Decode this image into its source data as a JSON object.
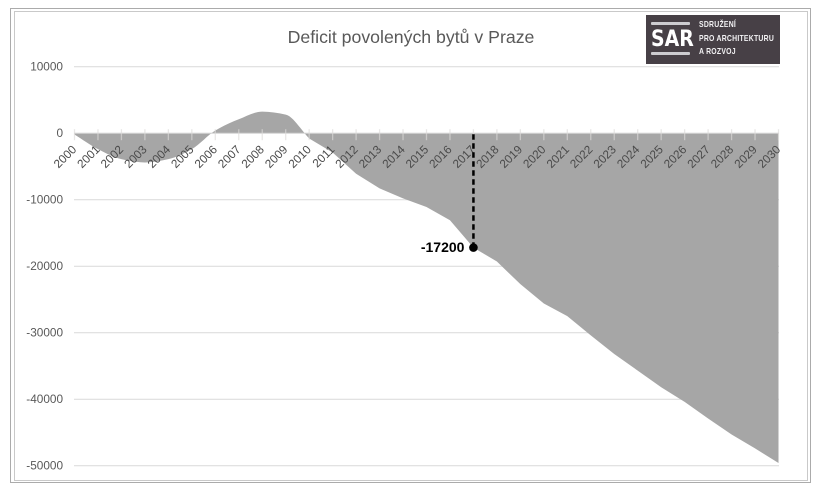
{
  "page": {
    "background": "#ffffff"
  },
  "chart_data": {
    "type": "area",
    "title": "Deficit povolených bytů v Praze",
    "categories": [
      "2000",
      "2001",
      "2002",
      "2003",
      "2004",
      "2005",
      "2006",
      "2007",
      "2008",
      "2009",
      "2010",
      "2011",
      "2012",
      "2013",
      "2014",
      "2015",
      "2016",
      "2017",
      "2018",
      "2019",
      "2020",
      "2021",
      "2022",
      "2023",
      "2024",
      "2025",
      "2026",
      "2027",
      "2028",
      "2029",
      "2030"
    ],
    "values": [
      -200,
      -2400,
      -3900,
      -4400,
      -3900,
      -2400,
      400,
      2100,
      3250,
      2800,
      -800,
      -2900,
      -6100,
      -8300,
      -9800,
      -11100,
      -13100,
      -17200,
      -19300,
      -22700,
      -25600,
      -27500,
      -30400,
      -33200,
      -35700,
      -38200,
      -40400,
      -42900,
      -45300,
      -47400,
      -49600
    ],
    "xlabel": "",
    "ylabel": "",
    "ylim": [
      -50000,
      10000
    ],
    "ytick_interval": 10000,
    "ytick_labels": [
      "10000",
      "0",
      "-10000",
      "-20000",
      "-30000",
      "-40000",
      "-50000"
    ],
    "grid": true,
    "smooth_until": "2010",
    "legend": "none",
    "fill_color": "#a6a6a6",
    "gridline_color": "#d9d9d9",
    "tick_color": "#dddbda",
    "label_color": "#595959",
    "xlabel_color": "#4a4a4a",
    "annotation": {
      "category": "2017",
      "value": -17200,
      "label": "-17200",
      "color": "#000000"
    }
  },
  "title": {
    "text": "Deficit povolených bytů v Praze",
    "color": "#595959"
  },
  "logo": {
    "abbr": "SAR",
    "line1": "SDRUŽENÍ",
    "line2": "PRO ARCHITEKTURU",
    "line3": "A ROZVOJ",
    "bg_color": "#474046",
    "bar_color": "#cdccd0",
    "text_color": "#f3f2f4"
  }
}
